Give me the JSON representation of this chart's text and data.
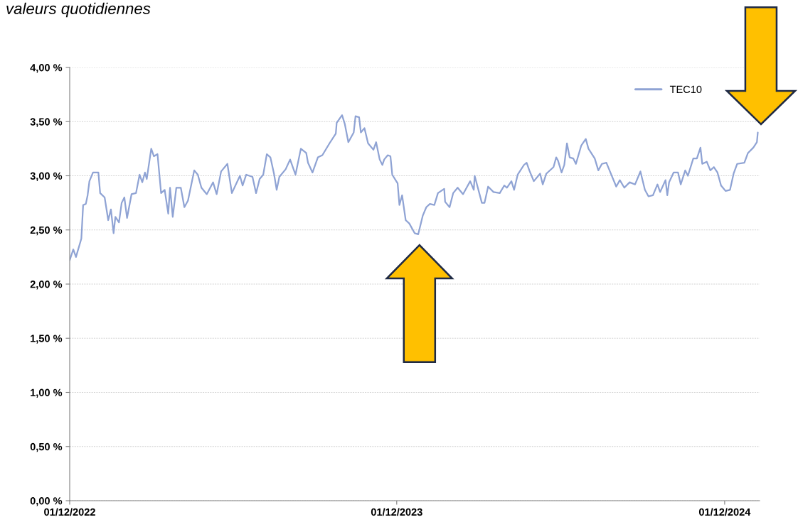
{
  "chart_data": {
    "type": "line",
    "title": "valeurs quotidiennes",
    "x": [
      "2022-12-01",
      "2022-12-05",
      "2022-12-08",
      "2022-12-14",
      "2022-12-16",
      "2022-12-19",
      "2022-12-21",
      "2022-12-23",
      "2022-12-27",
      "2023-01-02",
      "2023-01-04",
      "2023-01-09",
      "2023-01-13",
      "2023-01-16",
      "2023-01-19",
      "2023-01-21",
      "2023-01-25",
      "2023-01-28",
      "2023-01-31",
      "2023-02-03",
      "2023-02-08",
      "2023-02-13",
      "2023-02-17",
      "2023-02-20",
      "2023-02-23",
      "2023-02-25",
      "2023-03-02",
      "2023-03-05",
      "2023-03-09",
      "2023-03-13",
      "2023-03-17",
      "2023-03-21",
      "2023-03-23",
      "2023-03-26",
      "2023-03-30",
      "2023-04-04",
      "2023-04-08",
      "2023-04-12",
      "2023-04-19",
      "2023-04-23",
      "2023-04-27",
      "2023-05-03",
      "2023-05-10",
      "2023-05-14",
      "2023-05-19",
      "2023-05-26",
      "2023-05-31",
      "2023-06-09",
      "2023-06-12",
      "2023-06-16",
      "2023-06-23",
      "2023-06-27",
      "2023-07-01",
      "2023-07-05",
      "2023-07-09",
      "2023-07-13",
      "2023-07-17",
      "2023-07-20",
      "2023-07-23",
      "2023-07-30",
      "2023-08-04",
      "2023-08-10",
      "2023-08-16",
      "2023-08-22",
      "2023-08-24",
      "2023-08-29",
      "2023-09-04",
      "2023-09-09",
      "2023-09-17",
      "2023-09-24",
      "2023-09-25",
      "2023-10-01",
      "2023-10-04",
      "2023-10-08",
      "2023-10-14",
      "2023-10-16",
      "2023-10-20",
      "2023-10-22",
      "2023-10-26",
      "2023-10-30",
      "2023-11-05",
      "2023-11-08",
      "2023-11-12",
      "2023-11-15",
      "2023-11-17",
      "2023-11-21",
      "2023-11-24",
      "2023-11-26",
      "2023-12-02",
      "2023-12-04",
      "2023-12-07",
      "2023-12-11",
      "2023-12-15",
      "2023-12-21",
      "2023-12-25",
      "2023-12-30",
      "2024-01-03",
      "2024-01-07",
      "2024-01-12",
      "2024-01-16",
      "2024-01-23",
      "2024-01-24",
      "2024-01-29",
      "2024-02-02",
      "2024-02-07",
      "2024-02-13",
      "2024-02-17",
      "2024-02-21",
      "2024-02-25",
      "2024-02-26",
      "2024-03-05",
      "2024-03-08",
      "2024-03-12",
      "2024-03-18",
      "2024-03-25",
      "2024-03-30",
      "2024-04-02",
      "2024-04-07",
      "2024-04-10",
      "2024-04-14",
      "2024-04-21",
      "2024-04-24",
      "2024-04-27",
      "2024-05-02",
      "2024-05-09",
      "2024-05-12",
      "2024-05-16",
      "2024-05-24",
      "2024-05-27",
      "2024-05-29",
      "2024-06-02",
      "2024-06-05",
      "2024-06-08",
      "2024-06-11",
      "2024-06-15",
      "2024-06-18",
      "2024-06-24",
      "2024-06-29",
      "2024-07-02",
      "2024-07-09",
      "2024-07-13",
      "2024-07-17",
      "2024-07-22",
      "2024-07-26",
      "2024-08-02",
      "2024-08-06",
      "2024-08-11",
      "2024-08-17",
      "2024-08-23",
      "2024-08-29",
      "2024-09-03",
      "2024-09-07",
      "2024-09-12",
      "2024-09-17",
      "2024-09-20",
      "2024-09-26",
      "2024-09-28",
      "2024-09-30",
      "2024-10-05",
      "2024-10-10",
      "2024-10-13",
      "2024-10-18",
      "2024-10-21",
      "2024-10-27",
      "2024-10-31",
      "2024-11-04",
      "2024-11-06",
      "2024-11-11",
      "2024-11-15",
      "2024-11-19",
      "2024-11-23",
      "2024-11-27",
      "2024-12-02",
      "2024-12-07",
      "2024-12-11",
      "2024-12-15",
      "2024-12-23",
      "2024-12-27",
      "2025-01-02",
      "2025-01-06",
      "2025-01-07"
    ],
    "series": [
      {
        "name": "TEC10",
        "color": "#8fa3d4",
        "values": [
          2.22,
          2.32,
          2.25,
          2.42,
          2.73,
          2.74,
          2.82,
          2.95,
          3.03,
          3.03,
          2.84,
          2.8,
          2.59,
          2.69,
          2.47,
          2.62,
          2.57,
          2.75,
          2.8,
          2.61,
          2.83,
          2.84,
          3.01,
          2.94,
          3.03,
          2.97,
          3.25,
          3.18,
          3.2,
          2.84,
          2.87,
          2.65,
          2.89,
          2.62,
          2.89,
          2.89,
          2.71,
          2.77,
          3.05,
          3.01,
          2.89,
          2.83,
          2.94,
          2.83,
          3.04,
          3.11,
          2.84,
          3.0,
          2.91,
          3.01,
          2.99,
          2.84,
          2.97,
          3.01,
          3.2,
          3.17,
          3.02,
          2.87,
          2.99,
          3.06,
          3.15,
          3.01,
          3.25,
          3.21,
          3.12,
          3.03,
          3.17,
          3.19,
          3.3,
          3.39,
          3.49,
          3.56,
          3.48,
          3.31,
          3.4,
          3.55,
          3.54,
          3.4,
          3.44,
          3.3,
          3.24,
          3.31,
          3.15,
          3.1,
          3.15,
          3.19,
          3.18,
          3.01,
          2.93,
          2.73,
          2.82,
          2.59,
          2.56,
          2.47,
          2.46,
          2.63,
          2.71,
          2.74,
          2.73,
          2.84,
          2.88,
          2.76,
          2.71,
          2.84,
          2.89,
          2.83,
          2.89,
          2.95,
          2.87,
          3.0,
          2.75,
          2.75,
          2.9,
          2.85,
          2.84,
          2.91,
          2.89,
          2.95,
          2.87,
          3.01,
          3.1,
          3.12,
          3.05,
          2.95,
          3.02,
          2.92,
          3.02,
          3.08,
          3.17,
          3.14,
          3.03,
          3.1,
          3.3,
          3.17,
          3.16,
          3.11,
          3.28,
          3.34,
          3.25,
          3.16,
          3.05,
          3.11,
          3.12,
          3.04,
          2.9,
          2.96,
          2.89,
          2.94,
          2.92,
          3.04,
          2.87,
          2.81,
          2.82,
          2.92,
          2.85,
          2.96,
          2.82,
          2.94,
          3.03,
          3.03,
          2.92,
          3.05,
          3.0,
          3.16,
          3.16,
          3.26,
          3.11,
          3.13,
          3.05,
          3.08,
          3.03,
          2.91,
          2.86,
          2.87,
          3.02,
          3.11,
          3.12,
          3.21,
          3.26,
          3.31,
          3.4
        ]
      }
    ],
    "xlim": [
      "2022-12-01",
      "2025-01-09"
    ],
    "xticks": [
      {
        "value": "2022-12-01",
        "label": "01/12/2022"
      },
      {
        "value": "2023-12-01",
        "label": "01/12/2023"
      },
      {
        "value": "2024-12-01",
        "label": "01/12/2024"
      }
    ],
    "ylim": [
      0,
      4.0
    ],
    "yticks": [
      {
        "value": 0,
        "label": "0,00 %"
      },
      {
        "value": 0.5,
        "label": "0,50 %"
      },
      {
        "value": 1.0,
        "label": "1,00 %"
      },
      {
        "value": 1.5,
        "label": "1,50 %"
      },
      {
        "value": 2.0,
        "label": "2,00 %"
      },
      {
        "value": 2.5,
        "label": "2,50 %"
      },
      {
        "value": 3.0,
        "label": "3,00 %"
      },
      {
        "value": 3.5,
        "label": "3,50 %"
      },
      {
        "value": 4.0,
        "label": "4,00 %"
      }
    ],
    "grid": "y",
    "legend": "top right",
    "marker": "none",
    "line_style": "solid"
  }
}
